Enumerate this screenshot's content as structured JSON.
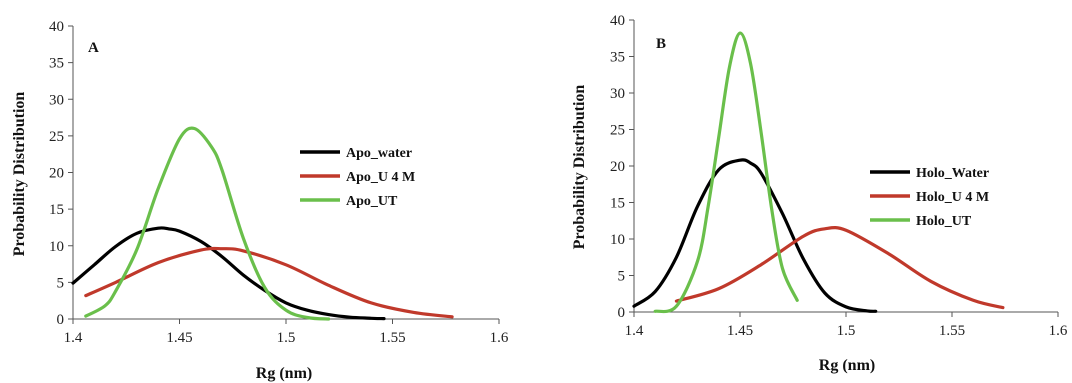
{
  "chart_data": [
    {
      "type": "line",
      "panel": "A",
      "xlabel": "Rg (nm)",
      "ylabel": "Probability Distribution",
      "xlim": [
        1.4,
        1.6
      ],
      "ylim": [
        0,
        40
      ],
      "xticks": [
        "1.4",
        "1.45",
        "1.5",
        "1.55",
        "1.6"
      ],
      "yticks": [
        "0",
        "5",
        "10",
        "15",
        "20",
        "25",
        "30",
        "35",
        "40"
      ],
      "grid": false,
      "legend_position": "right",
      "series": [
        {
          "name": "Apo_water",
          "color": "#000000",
          "x": [
            1.4,
            1.41,
            1.42,
            1.43,
            1.44,
            1.445,
            1.45,
            1.46,
            1.47,
            1.48,
            1.49,
            1.5,
            1.51,
            1.52,
            1.53,
            1.54,
            1.546
          ],
          "y": [
            4.9,
            7.4,
            9.9,
            11.7,
            12.4,
            12.3,
            12.0,
            10.6,
            8.5,
            6.0,
            3.9,
            2.2,
            1.2,
            0.6,
            0.25,
            0.1,
            0.05
          ]
        },
        {
          "name": "Apo_U 4 M",
          "color": "#c0392b",
          "x": [
            1.406,
            1.42,
            1.44,
            1.46,
            1.47,
            1.48,
            1.5,
            1.52,
            1.54,
            1.56,
            1.578
          ],
          "y": [
            3.2,
            5.0,
            7.7,
            9.4,
            9.6,
            9.3,
            7.4,
            4.6,
            2.2,
            0.9,
            0.3
          ]
        },
        {
          "name": "Apo_UT",
          "color": "#6abf4b",
          "x": [
            1.406,
            1.415,
            1.42,
            1.43,
            1.44,
            1.45,
            1.457,
            1.465,
            1.47,
            1.48,
            1.49,
            1.5,
            1.51,
            1.52
          ],
          "y": [
            0.4,
            1.8,
            3.8,
            9.5,
            17.8,
            24.6,
            26.0,
            23.5,
            20.3,
            11.0,
            4.3,
            1.2,
            0.2,
            0.0
          ]
        }
      ]
    },
    {
      "type": "line",
      "panel": "B",
      "xlabel": "Rg (nm)",
      "ylabel": "Probability Distribution",
      "xlim": [
        1.4,
        1.6
      ],
      "ylim": [
        0,
        40
      ],
      "xticks": [
        "1.4",
        "1.45",
        "1.5",
        "1.55",
        "1.6"
      ],
      "yticks": [
        "0",
        "5",
        "10",
        "15",
        "20",
        "25",
        "30",
        "35",
        "40"
      ],
      "grid": false,
      "legend_position": "right",
      "series": [
        {
          "name": "Holo_Water",
          "color": "#000000",
          "x": [
            1.4,
            1.41,
            1.42,
            1.43,
            1.44,
            1.45,
            1.455,
            1.46,
            1.47,
            1.48,
            1.49,
            1.5,
            1.51,
            1.514
          ],
          "y": [
            0.8,
            2.8,
            7.5,
            14.5,
            19.5,
            20.8,
            20.4,
            19.0,
            13.5,
            7.2,
            2.6,
            0.7,
            0.15,
            0.1
          ]
        },
        {
          "name": "Holo_U 4 M",
          "color": "#c0392b",
          "x": [
            1.42,
            1.44,
            1.46,
            1.48,
            1.49,
            1.5,
            1.52,
            1.54,
            1.56,
            1.574
          ],
          "y": [
            1.5,
            3.2,
            6.5,
            10.4,
            11.4,
            11.2,
            8.0,
            4.2,
            1.6,
            0.6
          ]
        },
        {
          "name": "Holo_UT",
          "color": "#6abf4b",
          "x": [
            1.41,
            1.42,
            1.43,
            1.435,
            1.44,
            1.445,
            1.45,
            1.455,
            1.46,
            1.465,
            1.47,
            1.477
          ],
          "y": [
            0.1,
            0.8,
            7.0,
            14.5,
            24.0,
            33.5,
            38.2,
            34.0,
            24.5,
            14.0,
            6.0,
            1.6
          ]
        }
      ]
    }
  ]
}
